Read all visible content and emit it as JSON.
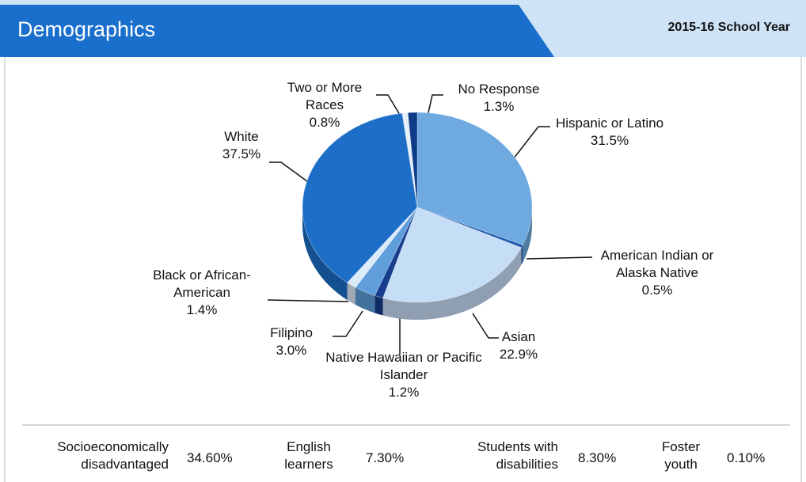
{
  "header": {
    "title": "Demographics",
    "subtitle": "2015-16 School Year"
  },
  "chart_data": {
    "type": "pie",
    "categories": [
      "Hispanic or Latino",
      "American Indian or Alaska Native",
      "Asian",
      "Native Hawaiian or Pacific Islander",
      "Filipino",
      "Black or African-American",
      "White",
      "Two or More Races",
      "No Response"
    ],
    "values": [
      31.5,
      0.5,
      22.9,
      1.2,
      3.0,
      1.4,
      37.5,
      0.8,
      1.3
    ],
    "value_labels": [
      "31.5%",
      "0.5%",
      "22.9%",
      "1.2%",
      "3.0%",
      "1.4%",
      "37.5%",
      "0.8%",
      "1.3%"
    ],
    "colors": [
      "#6ea9e0",
      "#1d57ac",
      "#c6ddf6",
      "#163e8c",
      "#5f9edb",
      "#dcebfa",
      "#1c6ec7",
      "#e4f0fa",
      "#0f3c88"
    ]
  },
  "stats": [
    {
      "label": "Socioeconomically disadvantaged",
      "value": "34.60%"
    },
    {
      "label": "English learners",
      "value": "7.30%"
    },
    {
      "label": "Students with disabilities",
      "value": "8.30%"
    },
    {
      "label": "Foster youth",
      "value": "0.10%"
    }
  ]
}
